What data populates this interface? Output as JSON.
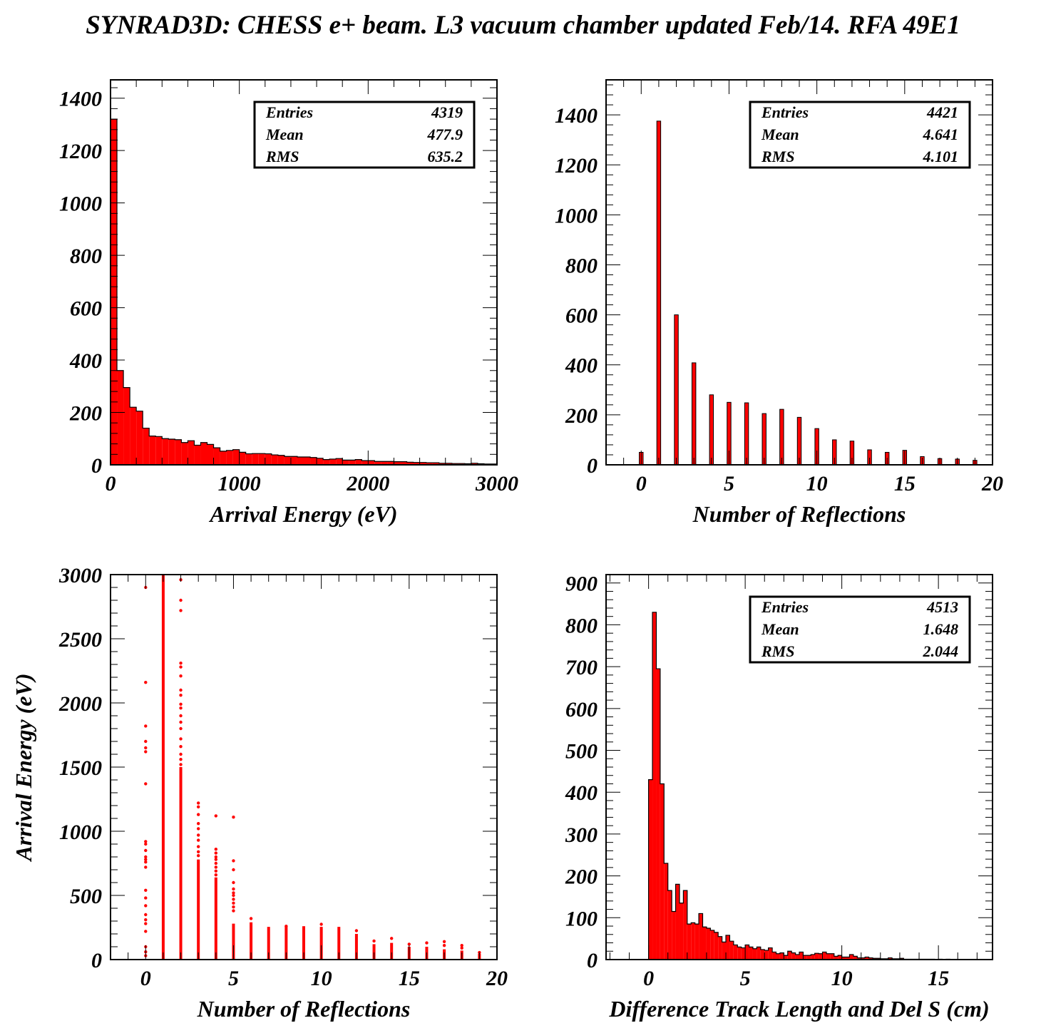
{
  "title": "SYNRAD3D: CHESS e+ beam. L3 vacuum chamber updated Feb/14. RFA 49E1",
  "colors": {
    "fill": "#ff0000",
    "edge": "#000000",
    "background": "#ffffff"
  },
  "chart_data": [
    {
      "type": "bar",
      "subtype": "histogram",
      "xlabel": "Arrival Energy (eV)",
      "ylabel": "",
      "xlim": [
        0,
        3000
      ],
      "ylim": [
        0,
        1470
      ],
      "xticks": [
        0,
        1000,
        2000,
        3000
      ],
      "yticks": [
        0,
        200,
        400,
        600,
        800,
        1000,
        1200,
        1400
      ],
      "bin_width": 50,
      "values": [
        1320,
        360,
        295,
        220,
        205,
        140,
        110,
        108,
        100,
        98,
        96,
        85,
        92,
        75,
        85,
        78,
        65,
        52,
        55,
        58,
        48,
        42,
        43,
        43,
        42,
        38,
        36,
        32,
        32,
        30,
        30,
        28,
        25,
        20,
        22,
        24,
        18,
        18,
        20,
        16,
        16,
        13,
        13,
        13,
        12,
        12,
        10,
        9,
        9,
        8,
        8,
        6,
        6,
        5,
        5,
        4,
        6,
        4,
        3,
        3
      ],
      "stats": {
        "entries_label": "Entries",
        "entries": "4319",
        "mean_label": "Mean",
        "mean": "477.9",
        "rms_label": "RMS",
        "rms": "635.2"
      }
    },
    {
      "type": "bar",
      "subtype": "histogram",
      "xlabel": "Number of Reflections",
      "ylabel": "",
      "xlim": [
        -2,
        20
      ],
      "ylim": [
        0,
        1540
      ],
      "xticks": [
        0,
        5,
        10,
        15,
        20
      ],
      "yticks": [
        0,
        200,
        400,
        600,
        800,
        1000,
        1200,
        1400
      ],
      "categories": [
        0,
        1,
        2,
        3,
        4,
        5,
        6,
        7,
        8,
        9,
        10,
        11,
        12,
        13,
        14,
        15,
        16,
        17,
        18,
        19
      ],
      "values": [
        50,
        1375,
        600,
        408,
        280,
        250,
        248,
        205,
        222,
        190,
        145,
        100,
        95,
        60,
        50,
        58,
        33,
        25,
        23,
        18
      ],
      "bar_width": 0.22,
      "stats": {
        "entries_label": "Entries",
        "entries": "4421",
        "mean_label": "Mean",
        "mean": "4.641",
        "rms_label": "RMS",
        "rms": "4.101"
      }
    },
    {
      "type": "scatter",
      "xlabel": "Number of Reflections",
      "ylabel": "Arrival Energy (eV)",
      "xlim": [
        -2,
        20
      ],
      "ylim": [
        0,
        3000
      ],
      "xticks": [
        0,
        5,
        10,
        15,
        20
      ],
      "yticks": [
        0,
        500,
        1000,
        1500,
        2000,
        2500,
        3000
      ],
      "columns": [
        {
          "x": 0,
          "dense_to": 0,
          "points": [
            2900,
            2160,
            1820,
            1700,
            1650,
            1620,
            1370,
            920,
            900,
            850,
            800,
            780,
            760,
            720,
            540,
            480,
            420,
            350,
            310,
            280,
            220,
            100,
            60,
            30
          ]
        },
        {
          "x": 1,
          "dense_to": 3000,
          "points": []
        },
        {
          "x": 2,
          "dense_to": 1500,
          "points": [
            2960,
            2800,
            2720,
            2310,
            2280,
            2210,
            2100,
            2060,
            1990,
            1960,
            1900,
            1850,
            1800,
            1720,
            1660,
            1600,
            1560,
            1520
          ]
        },
        {
          "x": 3,
          "dense_to": 780,
          "points": [
            1220,
            1190,
            1130,
            1060,
            1020,
            970,
            930,
            880,
            840,
            810
          ]
        },
        {
          "x": 4,
          "dense_to": 640,
          "points": [
            1120,
            860,
            830,
            800,
            780,
            750,
            720,
            690,
            660
          ]
        },
        {
          "x": 5,
          "dense_to": 280,
          "points": [
            1110,
            770,
            700,
            600,
            550,
            520,
            500,
            470,
            440,
            410,
            380
          ]
        },
        {
          "x": 6,
          "dense_to": 290,
          "points": [
            320
          ]
        },
        {
          "x": 7,
          "dense_to": 255,
          "points": []
        },
        {
          "x": 8,
          "dense_to": 255,
          "points": [
            260
          ]
        },
        {
          "x": 9,
          "dense_to": 260,
          "points": []
        },
        {
          "x": 10,
          "dense_to": 255,
          "points": [
            275
          ]
        },
        {
          "x": 11,
          "dense_to": 255,
          "points": []
        },
        {
          "x": 12,
          "dense_to": 200,
          "points": [
            225
          ]
        },
        {
          "x": 13,
          "dense_to": 120,
          "points": [
            145
          ]
        },
        {
          "x": 14,
          "dense_to": 130,
          "points": [
            165
          ]
        },
        {
          "x": 15,
          "dense_to": 100,
          "points": [
            120
          ]
        },
        {
          "x": 16,
          "dense_to": 100,
          "points": [
            130
          ]
        },
        {
          "x": 17,
          "dense_to": 80,
          "points": [
            140,
            110
          ]
        },
        {
          "x": 18,
          "dense_to": 70,
          "points": [
            110,
            90
          ]
        },
        {
          "x": 19,
          "dense_to": 45,
          "points": [
            55
          ]
        }
      ]
    },
    {
      "type": "bar",
      "subtype": "histogram",
      "xlabel": "Difference Track Length and Del S (cm)",
      "ylabel": "",
      "xlim": [
        -2.2,
        17.8
      ],
      "ylim": [
        0,
        920
      ],
      "xticks": [
        0,
        5,
        10,
        15
      ],
      "yticks": [
        0,
        100,
        200,
        300,
        400,
        500,
        600,
        700,
        800,
        900
      ],
      "bin_start": 0,
      "bin_width": 0.2,
      "values": [
        430,
        830,
        695,
        420,
        230,
        165,
        115,
        180,
        135,
        165,
        85,
        88,
        85,
        110,
        78,
        75,
        70,
        65,
        55,
        42,
        58,
        44,
        35,
        30,
        28,
        35,
        30,
        26,
        30,
        24,
        22,
        28,
        18,
        14,
        16,
        10,
        20,
        16,
        12,
        18,
        10,
        10,
        12,
        15,
        14,
        18,
        14,
        14,
        8,
        10,
        6,
        6,
        12,
        8,
        4,
        4,
        6,
        4,
        3,
        3,
        2,
        2,
        4,
        2,
        2,
        3,
        1,
        1,
        1,
        1,
        1,
        1,
        1,
        1,
        0,
        1,
        0,
        1
      ],
      "stats": {
        "entries_label": "Entries",
        "entries": "4513",
        "mean_label": "Mean",
        "mean": "1.648",
        "rms_label": "RMS",
        "rms": "2.044"
      }
    }
  ]
}
